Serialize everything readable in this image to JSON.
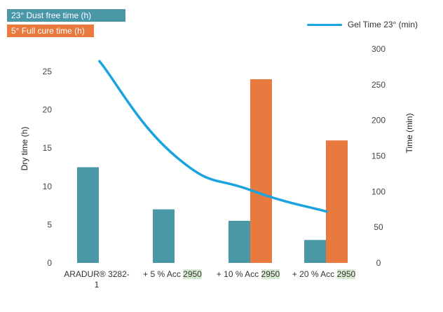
{
  "chart_data": {
    "type": "bar",
    "categories": [
      {
        "label": "ARADUR® 3282-1",
        "line1": "ARADUR® 3282-",
        "line2": "1",
        "highlight": ""
      },
      {
        "label": "+ 5 % Acc 2950",
        "line1": "+ 5 % Acc ",
        "line2": "",
        "highlight": "2950"
      },
      {
        "label": "+ 10 % Acc 2950",
        "line1": "+ 10 % Acc ",
        "line2": "",
        "highlight": "2950"
      },
      {
        "label": "+ 20 % Acc 2950",
        "line1": "+ 20 % Acc ",
        "line2": "",
        "highlight": "2950"
      }
    ],
    "series": [
      {
        "name": "23° Dust free time (h)",
        "type": "bar",
        "axis": "left",
        "color": "#4a97a8",
        "values": [
          12.5,
          7.0,
          5.5,
          3.0
        ]
      },
      {
        "name": "5° Full cure time (h)",
        "type": "bar",
        "axis": "left",
        "color": "#e8793f",
        "values": [
          null,
          null,
          24.0,
          16.0
        ]
      },
      {
        "name": "Gel Time 23° (min)",
        "type": "line",
        "axis": "right",
        "color": "#1aa3dc",
        "values": [
          283,
          150,
          102,
          72
        ]
      }
    ],
    "ylabel": "Dry time (h)",
    "y2label": "Time (min)",
    "ylim": [
      0,
      25
    ],
    "yticks": [
      0,
      5,
      10,
      15,
      20,
      25
    ],
    "y2lim": [
      0,
      300
    ],
    "y2ticks": [
      0,
      50,
      100,
      150,
      200,
      250,
      300
    ],
    "grid": false,
    "legend": "top"
  }
}
